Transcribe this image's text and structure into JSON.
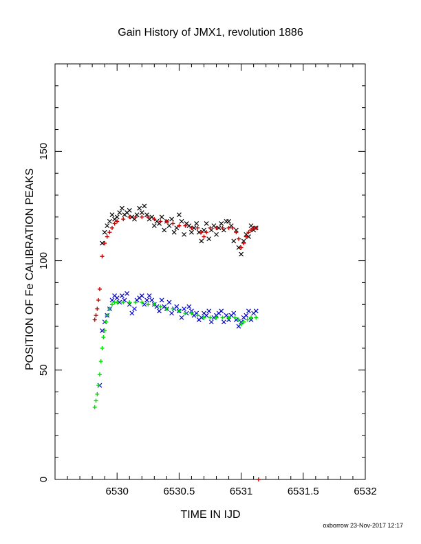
{
  "chart_data": {
    "type": "scatter",
    "title": "Gain History of JMX1, revolution 1886",
    "xlabel": "TIME IN IJD",
    "ylabel": "POSITION OF Fe CALIBRATION PEAKS",
    "xlim": [
      6529.5,
      6532
    ],
    "ylim": [
      0,
      190
    ],
    "x_ticks": [
      6530,
      6530.5,
      6531,
      6531.5,
      6532
    ],
    "x_tick_labels": [
      "6530",
      "6530.5",
      "6531",
      "6531.5",
      "6532"
    ],
    "y_ticks": [
      0,
      50,
      100,
      150
    ],
    "y_tick_labels": [
      "0",
      "50",
      "100",
      "150"
    ],
    "grid": false,
    "series": [
      {
        "color": "#000000",
        "marker": "x",
        "x": [
          6529.88,
          6529.9,
          6529.92,
          6529.94,
          6529.96,
          6529.98,
          6530.0,
          6530.02,
          6530.04,
          6530.06,
          6530.08,
          6530.1,
          6530.12,
          6530.14,
          6530.16,
          6530.18,
          6530.2,
          6530.22,
          6530.24,
          6530.26,
          6530.28,
          6530.3,
          6530.32,
          6530.34,
          6530.36,
          6530.38,
          6530.4,
          6530.42,
          6530.44,
          6530.46,
          6530.48,
          6530.5,
          6530.52,
          6530.54,
          6530.56,
          6530.58,
          6530.6,
          6530.62,
          6530.64,
          6530.66,
          6530.68,
          6530.7,
          6530.72,
          6530.74,
          6530.76,
          6530.78,
          6530.8,
          6530.82,
          6530.84,
          6530.86,
          6530.88,
          6530.9,
          6530.92,
          6530.94,
          6530.96,
          6530.98,
          6531.0,
          6531.02,
          6531.04,
          6531.06,
          6531.08,
          6531.1,
          6531.12
        ],
        "y": [
          108,
          113,
          116,
          118,
          121,
          119,
          120,
          122,
          124,
          121,
          122,
          123,
          120,
          119,
          121,
          124,
          122,
          125,
          121,
          119,
          120,
          116,
          118,
          117,
          120,
          114,
          118,
          116,
          119,
          113,
          115,
          121,
          118,
          112,
          117,
          116,
          113,
          115,
          117,
          113,
          109,
          114,
          117,
          110,
          114,
          116,
          112,
          115,
          117,
          114,
          118,
          118,
          116,
          109,
          114,
          106,
          103,
          109,
          112,
          111,
          116,
          114,
          115
        ]
      },
      {
        "color": "#cc0000",
        "marker": "+",
        "x": [
          6529.82,
          6529.83,
          6529.84,
          6529.85,
          6529.86,
          6529.88,
          6529.9,
          6529.92,
          6529.94,
          6529.96,
          6529.98,
          6530.0,
          6530.05,
          6530.1,
          6530.15,
          6530.2,
          6530.25,
          6530.3,
          6530.35,
          6530.4,
          6530.45,
          6530.5,
          6530.55,
          6530.6,
          6530.65,
          6530.68,
          6530.7,
          6530.72,
          6530.75,
          6530.8,
          6530.85,
          6530.9,
          6530.93,
          6530.96,
          6530.98,
          6531.0,
          6531.02,
          6531.04,
          6531.06,
          6531.08,
          6531.1,
          6531.12,
          6531.14
        ],
        "y": [
          73,
          75,
          78,
          82,
          87,
          102,
          108,
          111,
          113,
          115,
          117,
          118,
          119,
          120,
          120,
          120,
          120,
          119,
          118,
          118,
          117,
          116,
          116,
          115,
          115,
          113,
          111,
          113,
          115,
          115,
          115,
          115,
          115,
          113,
          110,
          106,
          108,
          111,
          113,
          114,
          115,
          115,
          0
        ]
      },
      {
        "color": "#0000cc",
        "marker": "x",
        "x": [
          6529.86,
          6529.88,
          6529.9,
          6529.92,
          6529.94,
          6529.96,
          6529.98,
          6530.0,
          6530.02,
          6530.04,
          6530.06,
          6530.08,
          6530.1,
          6530.12,
          6530.14,
          6530.16,
          6530.18,
          6530.2,
          6530.22,
          6530.24,
          6530.26,
          6530.28,
          6530.3,
          6530.32,
          6530.34,
          6530.36,
          6530.38,
          6530.4,
          6530.42,
          6530.44,
          6530.46,
          6530.48,
          6530.5,
          6530.52,
          6530.54,
          6530.56,
          6530.58,
          6530.6,
          6530.62,
          6530.64,
          6530.66,
          6530.68,
          6530.7,
          6530.72,
          6530.74,
          6530.76,
          6530.78,
          6530.8,
          6530.82,
          6530.84,
          6530.86,
          6530.88,
          6530.9,
          6530.92,
          6530.94,
          6530.96,
          6530.98,
          6531.0,
          6531.02,
          6531.04,
          6531.06,
          6531.08,
          6531.1,
          6531.12
        ],
        "y": [
          43,
          68,
          72,
          75,
          78,
          82,
          84,
          83,
          81,
          84,
          82,
          85,
          80,
          76,
          78,
          82,
          83,
          84,
          80,
          82,
          84,
          82,
          80,
          79,
          77,
          82,
          79,
          78,
          81,
          76,
          78,
          79,
          77,
          74,
          78,
          76,
          79,
          77,
          75,
          76,
          73,
          74,
          76,
          75,
          77,
          72,
          74,
          75,
          76,
          77,
          72,
          75,
          73,
          75,
          76,
          73,
          70,
          72,
          74,
          75,
          77,
          73,
          76,
          77
        ]
      },
      {
        "color": "#00dd00",
        "marker": "+",
        "x": [
          6529.82,
          6529.83,
          6529.84,
          6529.85,
          6529.86,
          6529.87,
          6529.88,
          6529.89,
          6529.9,
          6529.91,
          6529.92,
          6529.94,
          6529.96,
          6529.98,
          6530.0,
          6530.05,
          6530.1,
          6530.15,
          6530.2,
          6530.25,
          6530.3,
          6530.35,
          6530.4,
          6530.45,
          6530.5,
          6530.55,
          6530.6,
          6530.65,
          6530.7,
          6530.75,
          6530.8,
          6530.85,
          6530.9,
          6530.95,
          6530.98,
          6531.0,
          6531.02,
          6531.05,
          6531.08,
          6531.12
        ],
        "y": [
          33,
          36,
          39,
          43,
          48,
          54,
          60,
          65,
          68,
          72,
          75,
          78,
          80,
          81,
          81,
          81,
          81,
          81,
          81,
          80,
          80,
          79,
          78,
          78,
          77,
          76,
          76,
          75,
          74,
          74,
          74,
          74,
          74,
          74,
          73,
          71,
          72,
          73,
          74,
          74
        ]
      }
    ]
  },
  "footer": {
    "credit": "oxborrow 23-Nov-2017 12:17"
  }
}
